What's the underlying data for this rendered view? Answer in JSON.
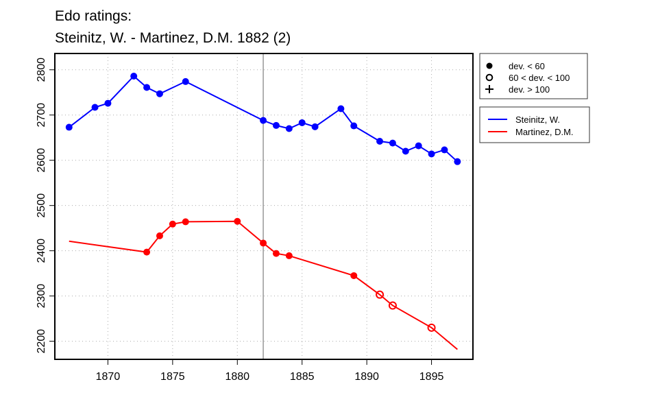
{
  "chart_data": {
    "type": "line",
    "title": [
      "Edo ratings:",
      "Steinitz, W. - Martinez, D.M. 1882 (2)"
    ],
    "xlabel": "",
    "ylabel": "",
    "xlim": [
      1865.9,
      1898.2
    ],
    "ylim": [
      2160,
      2836
    ],
    "xticks": [
      1870,
      1875,
      1880,
      1885,
      1890,
      1895
    ],
    "yticks": [
      2200,
      2300,
      2400,
      2500,
      2600,
      2700,
      2800
    ],
    "grid": true,
    "vline": 1882,
    "marker_legend": {
      "placement": "top-right-outside",
      "entries": [
        {
          "symbol": "filled",
          "label": "dev. < 60"
        },
        {
          "symbol": "open",
          "label": "60 < dev. < 100"
        },
        {
          "symbol": "plus",
          "label": "dev. > 100"
        }
      ]
    },
    "series_legend": {
      "placement": "right-outside"
    },
    "series": [
      {
        "name": "Steinitz, W.",
        "color": "#0000ff",
        "x": [
          1867,
          1869,
          1870,
          1872,
          1873,
          1874,
          1876,
          1882,
          1883,
          1884,
          1885,
          1886,
          1888,
          1889,
          1891,
          1892,
          1893,
          1894,
          1895,
          1896,
          1897
        ],
        "y": [
          2673,
          2717,
          2726,
          2786,
          2761,
          2747,
          2774,
          2688,
          2677,
          2670,
          2683,
          2674,
          2714,
          2676,
          2642,
          2638,
          2620,
          2632,
          2614,
          2623,
          2597
        ],
        "markers": [
          "filled",
          "filled",
          "filled",
          "filled",
          "filled",
          "filled",
          "filled",
          "filled",
          "filled",
          "filled",
          "filled",
          "filled",
          "filled",
          "filled",
          "filled",
          "filled",
          "filled",
          "filled",
          "filled",
          "filled",
          "filled"
        ]
      },
      {
        "name": "Martinez, D.M.",
        "color": "#ff0000",
        "x": [
          1867,
          1873,
          1874,
          1875,
          1876,
          1880,
          1882,
          1883,
          1884,
          1889,
          1891,
          1892,
          1895,
          1897
        ],
        "y": [
          2421,
          2397,
          2433,
          2459,
          2464,
          2465,
          2417,
          2394,
          2389,
          2345,
          2303,
          2279,
          2230,
          2182
        ],
        "markers": [
          "none",
          "filled",
          "filled",
          "filled",
          "filled",
          "filled",
          "filled",
          "filled",
          "filled",
          "filled",
          "open",
          "open",
          "open",
          "none"
        ]
      }
    ]
  }
}
